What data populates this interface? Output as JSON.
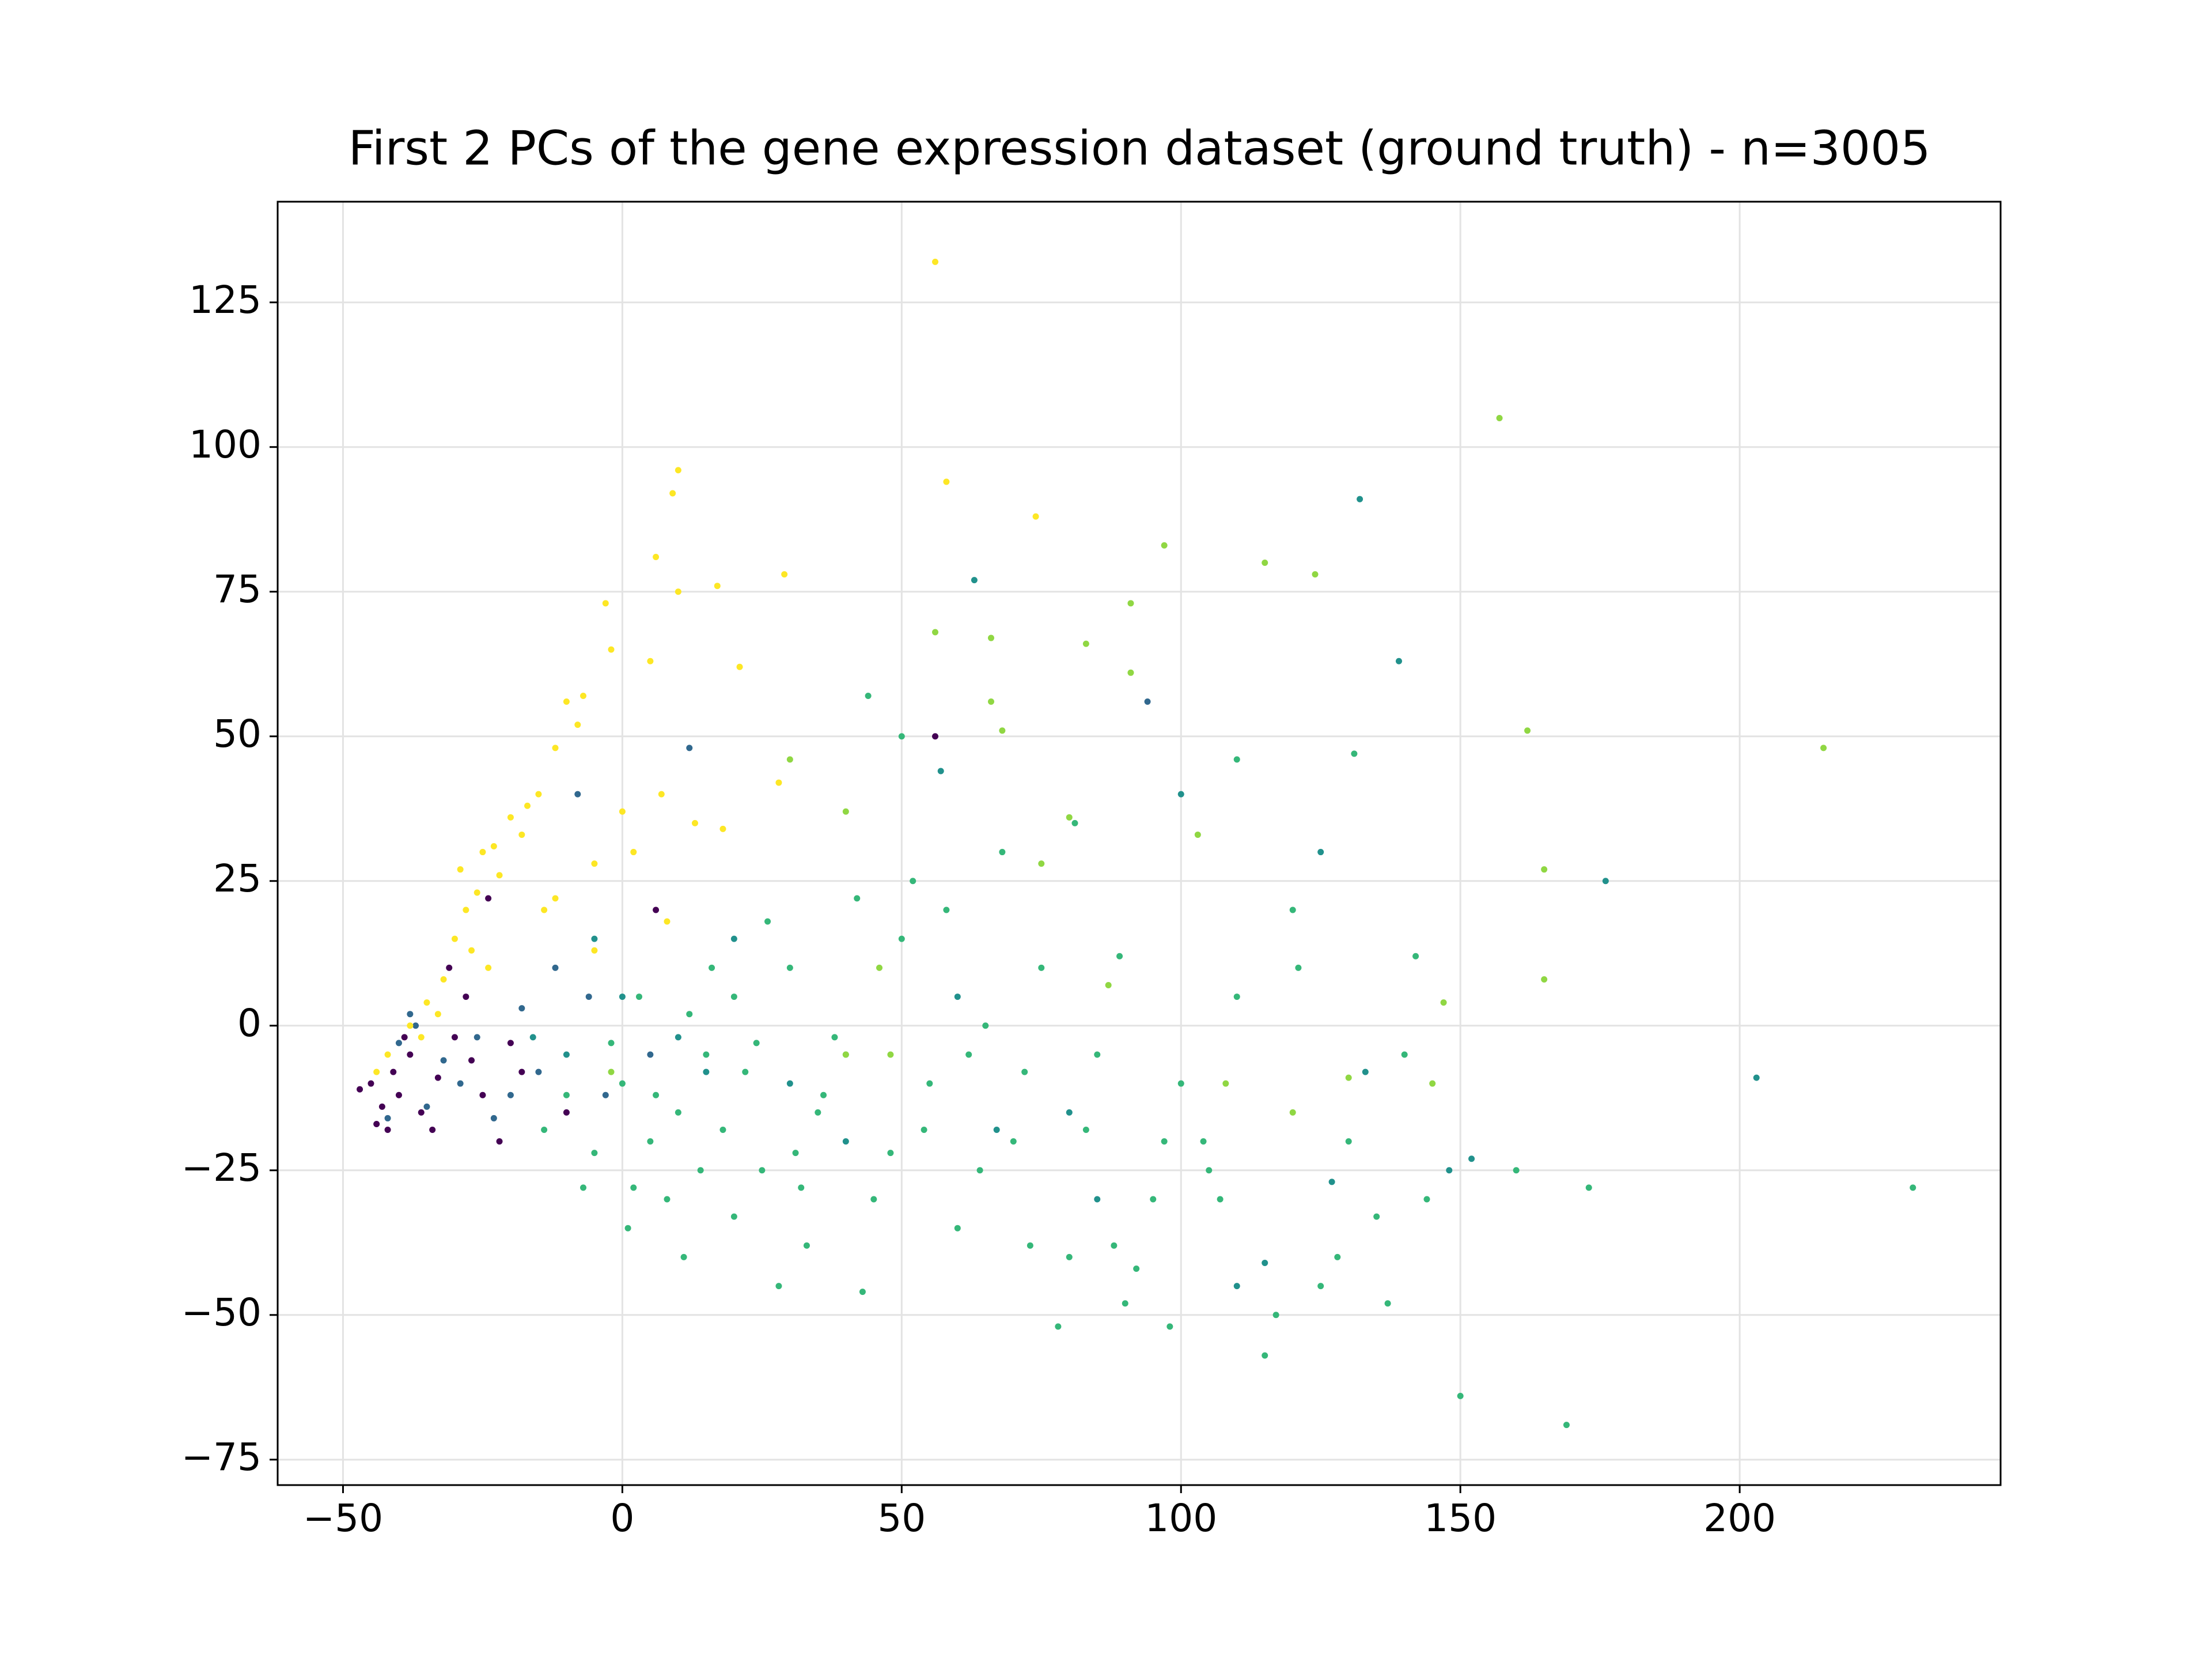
{
  "chart_data": {
    "type": "scatter",
    "title": "First 2 PCs of the gene expression dataset (ground truth) - n=3005",
    "xlim": [
      -61.7,
      246.7
    ],
    "ylim": [
      -79.4,
      142.4
    ],
    "xticks": [
      {
        "value": -50,
        "label": "−50"
      },
      0,
      50,
      100,
      150,
      200
    ],
    "yticks": [
      {
        "value": -75,
        "label": "−75"
      },
      {
        "value": -50,
        "label": "−50"
      },
      {
        "value": -25,
        "label": "−25"
      },
      0,
      25,
      50,
      75,
      100,
      125
    ],
    "grid": true,
    "series": [
      {
        "color": "#21918c",
        "x": [
          63,
          139,
          132,
          176,
          203,
          125,
          127,
          -5,
          0,
          10,
          20,
          30,
          40,
          60,
          80,
          100,
          110,
          133,
          148,
          152,
          -10,
          -16,
          15,
          57,
          67,
          85,
          115
        ],
        "values": [
          77,
          63,
          91,
          25,
          -9,
          30,
          -27,
          15,
          5,
          -2,
          15,
          -10,
          -20,
          5,
          -15,
          40,
          -45,
          -8,
          -25,
          -23,
          -5,
          -2,
          -8,
          44,
          -18,
          -30,
          -41
        ]
      },
      {
        "color": "#35b779",
        "x": [
          0,
          5,
          10,
          15,
          20,
          25,
          30,
          35,
          40,
          45,
          50,
          55,
          60,
          65,
          70,
          75,
          80,
          85,
          90,
          95,
          100,
          105,
          110,
          115,
          120,
          125,
          130,
          140,
          150,
          169,
          173,
          160,
          -5,
          -10,
          3,
          8,
          12,
          18,
          22,
          28,
          33,
          38,
          43,
          48,
          52,
          58,
          62,
          68,
          73,
          78,
          83,
          88,
          92,
          98,
          104,
          117,
          128,
          135,
          144,
          110,
          131,
          44,
          50,
          -2,
          6,
          14,
          24,
          32,
          2,
          16,
          26,
          36,
          42,
          54,
          64,
          72,
          81,
          89,
          97,
          107,
          121,
          137,
          142,
          231,
          -14,
          -7,
          1,
          11,
          20,
          31
        ],
        "values": [
          -10,
          -20,
          -15,
          -5,
          5,
          -25,
          10,
          -15,
          -5,
          -30,
          15,
          -10,
          -35,
          0,
          -20,
          10,
          -40,
          -5,
          -48,
          -30,
          -10,
          -25,
          5,
          -57,
          20,
          -45,
          -20,
          -5,
          -64,
          -69,
          -28,
          -25,
          -22,
          -12,
          5,
          -30,
          2,
          -18,
          -8,
          -45,
          -38,
          -2,
          -46,
          -22,
          25,
          20,
          -5,
          30,
          -38,
          -52,
          -18,
          -38,
          -42,
          -52,
          -20,
          -50,
          -40,
          -33,
          -30,
          46,
          47,
          57,
          50,
          -3,
          -12,
          -25,
          -3,
          -28,
          -28,
          10,
          18,
          -12,
          22,
          -18,
          -25,
          -8,
          35,
          12,
          -20,
          -30,
          10,
          -48,
          12,
          -28,
          -18,
          -28,
          -35,
          -40,
          -33,
          -22
        ]
      },
      {
        "color": "#31688e",
        "x": [
          -40,
          -37,
          -35,
          -32,
          -29,
          -26,
          -23,
          -18,
          -15,
          -12,
          -8,
          12,
          -42,
          -38,
          94,
          -6,
          -20,
          5,
          -3
        ],
        "values": [
          -3,
          0,
          -14,
          -6,
          -10,
          -2,
          -16,
          3,
          -8,
          10,
          40,
          48,
          -16,
          2,
          56,
          5,
          -12,
          -5,
          -12
        ]
      },
      {
        "color": "#90d743",
        "x": [
          157,
          162,
          215,
          115,
          124,
          97,
          91,
          83,
          91,
          66,
          56,
          68,
          66,
          103,
          80,
          75,
          46,
          40,
          48,
          145,
          147,
          165,
          165,
          120,
          30,
          40,
          87,
          108,
          130,
          -2
        ],
        "values": [
          105,
          51,
          48,
          80,
          78,
          83,
          73,
          66,
          61,
          67,
          68,
          51,
          56,
          33,
          36,
          28,
          10,
          -5,
          -5,
          -10,
          4,
          8,
          27,
          -15,
          46,
          37,
          7,
          -10,
          -9,
          -8
        ]
      },
      {
        "color": "#fde725",
        "x": [
          56,
          10,
          9,
          58,
          74,
          6,
          -3,
          17,
          29,
          10,
          -2,
          5,
          21,
          -10,
          -7,
          -12,
          -15,
          -20,
          -25,
          -22,
          -28,
          -30,
          -32,
          -35,
          -38,
          -18,
          -5,
          0,
          7,
          13,
          18,
          -27,
          -24,
          -33,
          -42,
          -44,
          -36,
          -26,
          -14,
          -8,
          -17,
          -23,
          -29,
          -12,
          2,
          28,
          -5,
          8
        ],
        "values": [
          132,
          96,
          92,
          94,
          88,
          81,
          73,
          76,
          78,
          75,
          65,
          63,
          62,
          56,
          57,
          48,
          40,
          36,
          30,
          26,
          20,
          15,
          8,
          4,
          0,
          33,
          28,
          37,
          40,
          35,
          34,
          13,
          10,
          2,
          -5,
          -8,
          -2,
          23,
          20,
          52,
          38,
          31,
          27,
          22,
          30,
          42,
          13,
          18
        ]
      },
      {
        "color": "#440154",
        "x": [
          -45,
          -43,
          -41,
          -44,
          -40,
          -38,
          -36,
          -33,
          -30,
          -28,
          -25,
          -22,
          -20,
          -31,
          -24,
          -10,
          -47,
          -42,
          -39,
          -34,
          56,
          6,
          -18,
          -27
        ],
        "values": [
          -10,
          -14,
          -8,
          -17,
          -12,
          -5,
          -15,
          -9,
          -2,
          5,
          -12,
          -20,
          -3,
          10,
          22,
          -15,
          -11,
          -18,
          -2,
          -18,
          50,
          20,
          -8,
          -6
        ]
      }
    ]
  }
}
